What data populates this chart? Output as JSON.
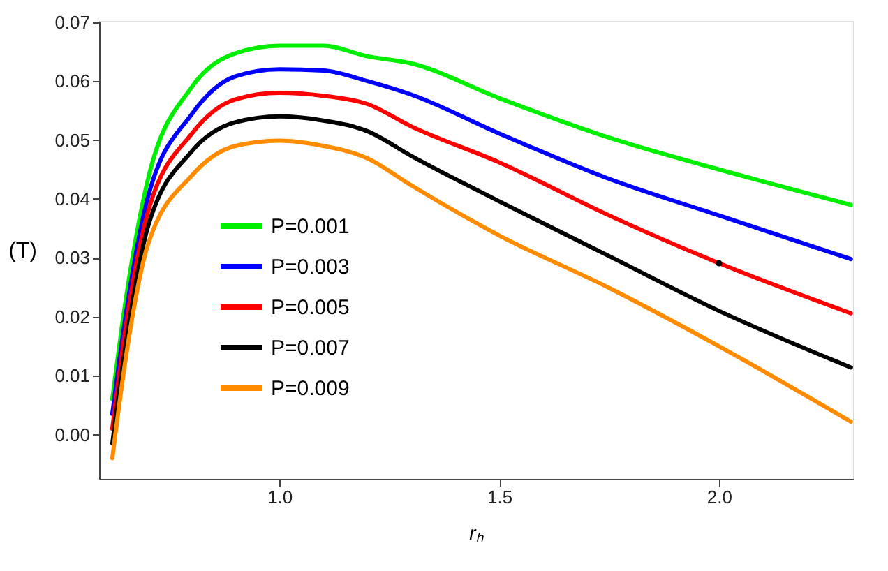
{
  "chart_data": {
    "type": "line",
    "xlabel": "rₕ",
    "ylabel": "(T)",
    "xlim": [
      0.59,
      2.305
    ],
    "ylim": [
      -0.0075,
      0.0702
    ],
    "xticks": [
      {
        "value": 1,
        "label": "1.0"
      },
      1.5,
      {
        "value": 2,
        "label": "2.0"
      }
    ],
    "yticks": [
      {
        "value": 0,
        "label": "0.00"
      },
      0.01,
      0.02,
      0.03,
      0.04,
      0.05,
      0.06,
      0.07
    ],
    "grid": false,
    "legend": "left",
    "marker": "none",
    "line_style": "solid",
    "x": [
      0.62,
      0.65,
      0.7,
      0.8,
      0.9,
      1.0,
      1.1,
      1.2,
      1.3,
      1.5,
      1.75,
      2.0,
      2.3
    ],
    "series": [
      {
        "name": "P=0.001",
        "color": "#00ee00",
        "values": [
          0.006,
          0.0226,
          0.043,
          0.0589,
          0.0647,
          0.066,
          0.066,
          0.0642,
          0.063,
          0.0571,
          0.0504,
          0.045,
          0.039
        ]
      },
      {
        "name": "P=0.003",
        "color": "#0000ff",
        "values": [
          0.0035,
          0.02,
          0.04,
          0.0543,
          0.0608,
          0.062,
          0.0618,
          0.06,
          0.0577,
          0.0511,
          0.0434,
          0.0372,
          0.0298
        ]
      },
      {
        "name": "P=0.005",
        "color": "#ff0000",
        "values": [
          0.001,
          0.018,
          0.0375,
          0.051,
          0.0569,
          0.058,
          0.0575,
          0.0561,
          0.0523,
          0.0462,
          0.0372,
          0.0291,
          0.0206
        ]
      },
      {
        "name": "P=0.007",
        "color": "#000000",
        "values": [
          -0.0015,
          0.015,
          0.035,
          0.048,
          0.053,
          0.054,
          0.0533,
          0.0515,
          0.0473,
          0.0396,
          0.0303,
          0.021,
          0.0114
        ]
      },
      {
        "name": "P=0.009",
        "color": "#ff8c00",
        "values": [
          -0.004,
          0.0127,
          0.032,
          0.0439,
          0.049,
          0.0499,
          0.049,
          0.0469,
          0.0423,
          0.0338,
          0.0249,
          0.015,
          0.0022
        ]
      },
      {
        "type": "scatter",
        "marker": "circle",
        "color": "#000000",
        "x": [
          2.0
        ],
        "values": [
          0.0291
        ]
      }
    ]
  }
}
